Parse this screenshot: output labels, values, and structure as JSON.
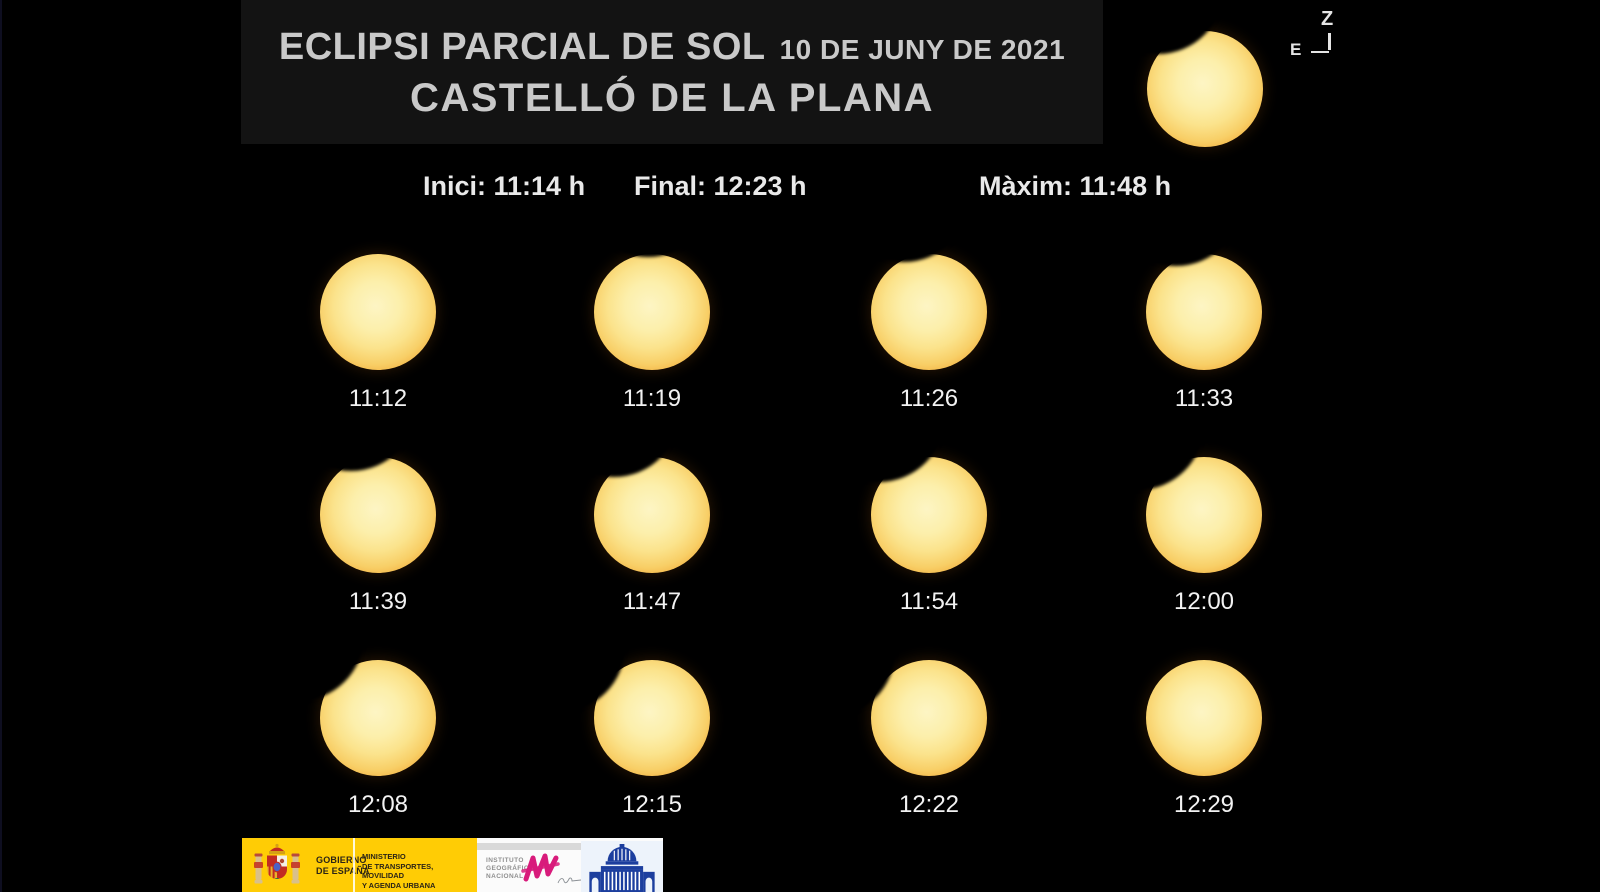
{
  "header": {
    "title": "ECLIPSI PARCIAL DE SOL",
    "date": "10 DE JUNY DE 2021",
    "city": "CASTELLÓ DE LA PLANA"
  },
  "summary": {
    "start": "Inici: 11:14 h",
    "end": "Final: 12:23 h",
    "max": "Màxim: 11:48 h"
  },
  "orientation": {
    "zenith": "Z",
    "east": "E"
  },
  "frames": [
    {
      "time": "11:12",
      "bite": null
    },
    {
      "time": "11:19",
      "bite": {
        "angle_deg": -2,
        "depth": 0.05
      }
    },
    {
      "time": "11:26",
      "bite": {
        "angle_deg": -12,
        "depth": 0.1
      }
    },
    {
      "time": "11:33",
      "bite": {
        "angle_deg": -14,
        "depth": 0.15
      }
    },
    {
      "time": "11:39",
      "bite": {
        "angle_deg": -14,
        "depth": 0.19
      }
    },
    {
      "time": "11:47",
      "bite": {
        "angle_deg": -20,
        "depth": 0.23
      }
    },
    {
      "time": "11:54",
      "bite": {
        "angle_deg": -27,
        "depth": 0.22
      }
    },
    {
      "time": "12:00",
      "bite": {
        "angle_deg": -36,
        "depth": 0.2
      }
    },
    {
      "time": "12:08",
      "bite": {
        "angle_deg": -44,
        "depth": 0.16
      }
    },
    {
      "time": "12:15",
      "bite": {
        "angle_deg": -52,
        "depth": 0.11
      }
    },
    {
      "time": "12:22",
      "bite": {
        "angle_deg": -56,
        "depth": 0.06
      }
    },
    {
      "time": "12:29",
      "bite": null
    }
  ],
  "header_sun": {
    "bite": {
      "angle_deg": -25,
      "depth": 0.21
    }
  },
  "footer": {
    "gobierno_lines": [
      "GOBIERNO",
      "DE ESPAÑA"
    ],
    "ministerio_lines": [
      "MINISTERIO",
      "DE TRANSPORTES, MOVILIDAD",
      "Y AGENDA URBANA"
    ],
    "ign_lines": [
      "INSTITUTO",
      "GEOGRÁFICO",
      "NACIONAL"
    ]
  },
  "colors": {
    "background": "#000000",
    "header_box": "#131313",
    "heading_text": "#c9c9c9",
    "time_label_text": "#f2f2f2",
    "sun_core": "#fdf5c4",
    "sun_edge": "#ef9b28",
    "gov_yellow": "#ffcc05",
    "ign_magenta": "#d81b7b",
    "ign_blue": "#1c3e9e"
  }
}
